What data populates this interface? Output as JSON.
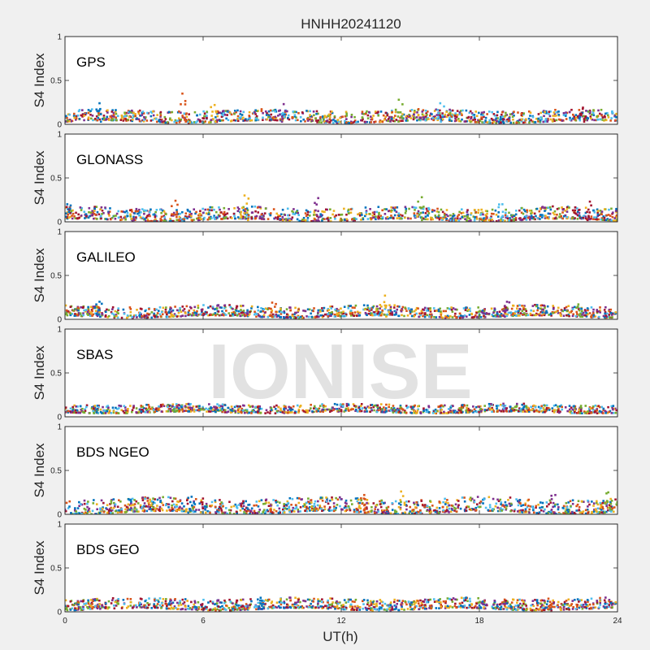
{
  "figure": {
    "title": "HNHH20241120",
    "xlabel": "UT(h)",
    "watermark": "IONISE"
  },
  "colors": [
    "#0072BD",
    "#D95319",
    "#EDB120",
    "#7E2F8E",
    "#77AC30",
    "#4DBEEE",
    "#A2142F"
  ],
  "chart_data": [
    {
      "type": "scatter",
      "system": "GPS",
      "ylabel": "S4 Index",
      "xlim": [
        0,
        24
      ],
      "ylim": [
        0,
        1
      ],
      "xticks": [
        0,
        6,
        12,
        18,
        24
      ],
      "yticks": [
        0,
        0.5,
        1
      ],
      "ytick_labels": [
        "0",
        "0.5",
        "1"
      ],
      "typical_s4": [
        0.03,
        0.16
      ],
      "peaks": [
        {
          "x": 1.5,
          "y": 0.24
        },
        {
          "x": 5.1,
          "y": 0.35
        },
        {
          "x": 6.5,
          "y": 0.22
        },
        {
          "x": 9.5,
          "y": 0.23
        },
        {
          "x": 14.5,
          "y": 0.28
        },
        {
          "x": 16.3,
          "y": 0.24
        },
        {
          "x": 22.5,
          "y": 0.19
        }
      ]
    },
    {
      "type": "scatter",
      "system": "GLONASS",
      "ylabel": "S4 Index",
      "xlim": [
        0,
        24
      ],
      "ylim": [
        0,
        1
      ],
      "xticks": [
        0,
        6,
        12,
        18,
        24
      ],
      "yticks": [
        0,
        0.5,
        1
      ],
      "ytick_labels": [
        "0",
        "0.5",
        "1"
      ],
      "typical_s4": [
        0.02,
        0.16
      ],
      "peaks": [
        {
          "x": 0.1,
          "y": 0.2
        },
        {
          "x": 4.8,
          "y": 0.24
        },
        {
          "x": 7.8,
          "y": 0.3
        },
        {
          "x": 11.0,
          "y": 0.27
        },
        {
          "x": 15.5,
          "y": 0.28
        },
        {
          "x": 19.0,
          "y": 0.2
        },
        {
          "x": 22.8,
          "y": 0.23
        }
      ]
    },
    {
      "type": "scatter",
      "system": "GALILEO",
      "ylabel": "S4 Index",
      "xlim": [
        0,
        24
      ],
      "ylim": [
        0,
        1
      ],
      "xticks": [
        0,
        6,
        12,
        18,
        24
      ],
      "yticks": [
        0,
        0.5,
        1
      ],
      "ytick_labels": [
        "0",
        "0.5",
        "1"
      ],
      "typical_s4": [
        0.03,
        0.15
      ],
      "peaks": [
        {
          "x": 1.5,
          "y": 0.2
        },
        {
          "x": 9.0,
          "y": 0.19
        },
        {
          "x": 13.9,
          "y": 0.27
        },
        {
          "x": 19.2,
          "y": 0.2
        },
        {
          "x": 22.3,
          "y": 0.17
        }
      ]
    },
    {
      "type": "scatter",
      "system": "SBAS",
      "ylabel": "S4 Index",
      "xlim": [
        0,
        24
      ],
      "ylim": [
        0,
        1
      ],
      "xticks": [
        0,
        6,
        12,
        18,
        24
      ],
      "yticks": [
        0,
        0.5,
        1
      ],
      "ytick_labels": [
        "0",
        "0.5",
        "1"
      ],
      "typical_s4": [
        0.05,
        0.14
      ],
      "peaks": []
    },
    {
      "type": "scatter",
      "system": "BDS NGEO",
      "ylabel": "S4 Index",
      "xlim": [
        0,
        24
      ],
      "ylim": [
        0,
        1
      ],
      "xticks": [
        0,
        6,
        12,
        18,
        24
      ],
      "yticks": [
        0,
        0.5,
        1
      ],
      "ytick_labels": [
        "0",
        "0.5",
        "1"
      ],
      "typical_s4": [
        0.02,
        0.18
      ],
      "peaks": [
        {
          "x": 5.5,
          "y": 0.2
        },
        {
          "x": 13.0,
          "y": 0.22
        },
        {
          "x": 14.6,
          "y": 0.26
        },
        {
          "x": 21.3,
          "y": 0.22
        },
        {
          "x": 23.6,
          "y": 0.25
        }
      ]
    },
    {
      "type": "scatter",
      "system": "BDS GEO",
      "ylabel": "S4 Index",
      "xlim": [
        0,
        24
      ],
      "ylim": [
        0,
        1
      ],
      "xticks": [
        0,
        6,
        12,
        18,
        24
      ],
      "yticks": [
        0,
        0.5,
        1
      ],
      "ytick_labels": [
        "0",
        "0.5",
        "1"
      ],
      "typical_s4": [
        0.03,
        0.15
      ],
      "peaks": [
        {
          "x": 8.5,
          "y": 0.16
        },
        {
          "x": 21.0,
          "y": 0.15
        }
      ]
    }
  ]
}
